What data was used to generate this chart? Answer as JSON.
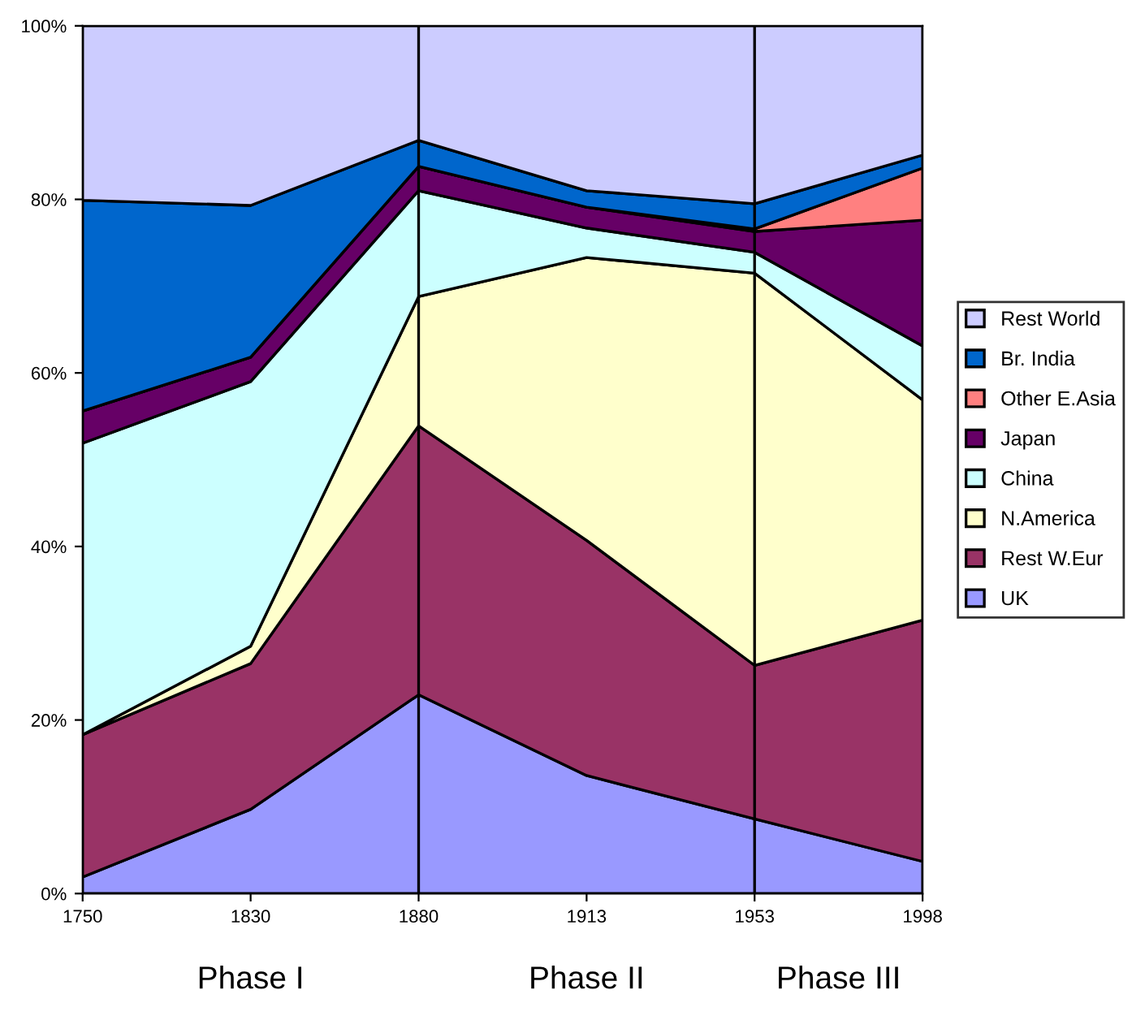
{
  "chart_data": {
    "type": "area",
    "stacked": true,
    "categories": [
      "1750",
      "1830",
      "1880",
      "1913",
      "1953",
      "1998"
    ],
    "series": [
      {
        "name": "UK",
        "color": "#9999ff",
        "values": [
          1.9,
          9.7,
          22.9,
          13.6,
          8.6,
          3.7
        ]
      },
      {
        "name": "Rest W.Eur",
        "color": "#993366",
        "values": [
          16.4,
          16.8,
          31.0,
          27.1,
          17.7,
          27.8
        ]
      },
      {
        "name": "N.America",
        "color": "#ffffcc",
        "values": [
          0,
          2.0,
          14.9,
          32.6,
          45.2,
          25.4
        ]
      },
      {
        "name": "China",
        "color": "#ccffff",
        "values": [
          33.6,
          30.5,
          12.2,
          3.4,
          2.4,
          6.2
        ]
      },
      {
        "name": "Japan",
        "color": "#660066",
        "values": [
          3.7,
          2.8,
          2.8,
          2.4,
          2.4,
          14.5
        ]
      },
      {
        "name": "Other E.Asia",
        "color": "#ff8080",
        "values": [
          0,
          0,
          0,
          0,
          0.3,
          6.0
        ]
      },
      {
        "name": "Br. India",
        "color": "#0066cc",
        "values": [
          24.3,
          17.5,
          3.0,
          1.9,
          2.9,
          1.5
        ]
      },
      {
        "name": "Rest World",
        "color": "#ccccff",
        "values": [
          20.1,
          20.7,
          13.2,
          19.0,
          20.5,
          14.9
        ]
      }
    ],
    "ylim": [
      0,
      100
    ],
    "yticks": [
      {
        "value": 0,
        "label": "0%"
      },
      {
        "value": 20,
        "label": "20%"
      },
      {
        "value": 40,
        "label": "40%"
      },
      {
        "value": 60,
        "label": "60%"
      },
      {
        "value": 80,
        "label": "80%"
      },
      {
        "value": 100,
        "label": "100%"
      }
    ],
    "ref_lines": [
      {
        "axis": "x",
        "value": "1880",
        "color": "#000000"
      },
      {
        "axis": "x",
        "value": "1953",
        "color": "#000000"
      }
    ],
    "annotations": [
      "Phase I",
      "Phase II",
      "Phase III"
    ],
    "legend": "right",
    "grid": false
  }
}
